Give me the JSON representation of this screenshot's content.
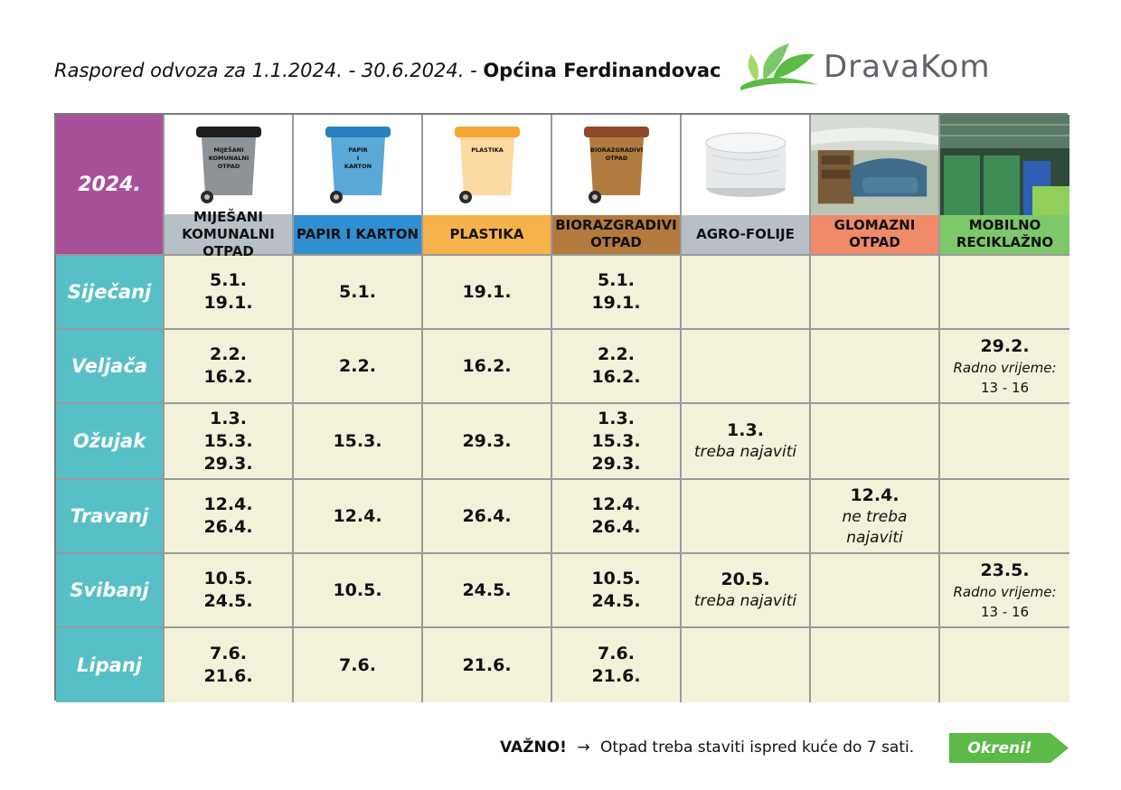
{
  "header": {
    "range_text": "Raspored odvoza za 1.1.2024. - 30.6.2024. - ",
    "municipality": "Općina Ferdinandovac",
    "logo_text": "DravaKom"
  },
  "table": {
    "year": "2024.",
    "columns": [
      {
        "bin_text": "MIJEŠANI KOMUNALNI OTPAD",
        "label": "MIJEŠANI KOMUNALNI OTPAD",
        "color": "#b7c0c6",
        "bin_color": "#8e9398",
        "lid_color": "#1e1e1e"
      },
      {
        "bin_text": "PAPIR I KARTON",
        "label": "PAPIR I KARTON",
        "color": "#2f8fd1",
        "bin_color": "#5aa9d8",
        "lid_color": "#2a7fbd"
      },
      {
        "bin_text": "PLASTIKA",
        "label": "PLASTIKA",
        "color": "#f7b24a",
        "bin_color": "#fdd9a4",
        "lid_color": "#f7a531"
      },
      {
        "bin_text": "BIORAZGRADIVI OTPAD",
        "label": "BIORAZGRADIVI OTPAD",
        "color": "#b37a3e",
        "bin_color": "#b07b3f",
        "lid_color": "#8c4a2a"
      },
      {
        "label": "AGRO-FOLIJE",
        "color": "#b7c0c6"
      },
      {
        "label": "GLOMAZNI OTPAD",
        "color": "#f08a6a"
      },
      {
        "label": "MOBILNO RECIKLAŽNO",
        "color": "#7cc86a"
      }
    ],
    "rows": [
      {
        "month": "Siječanj",
        "cells": [
          {
            "dates": [
              "5.1.",
              "19.1."
            ]
          },
          {
            "dates": [
              "5.1."
            ]
          },
          {
            "dates": [
              "19.1."
            ]
          },
          {
            "dates": [
              "5.1.",
              "19.1."
            ]
          },
          {},
          {},
          {}
        ]
      },
      {
        "month": "Veljača",
        "cells": [
          {
            "dates": [
              "2.2.",
              "16.2."
            ]
          },
          {
            "dates": [
              "2.2."
            ]
          },
          {
            "dates": [
              "16.2."
            ]
          },
          {
            "dates": [
              "2.2.",
              "16.2."
            ]
          },
          {},
          {},
          {
            "dates": [
              "29.2."
            ],
            "note": "Radno vrijeme:",
            "hours": "13 - 16"
          }
        ]
      },
      {
        "month": "Ožujak",
        "cells": [
          {
            "dates": [
              "1.3.",
              "15.3.",
              "29.3."
            ]
          },
          {
            "dates": [
              "15.3."
            ]
          },
          {
            "dates": [
              "29.3."
            ]
          },
          {
            "dates": [
              "1.3.",
              "15.3.",
              "29.3."
            ]
          },
          {
            "dates": [
              "1.3."
            ],
            "note": "treba najaviti"
          },
          {},
          {}
        ]
      },
      {
        "month": "Travanj",
        "cells": [
          {
            "dates": [
              "12.4.",
              "26.4."
            ]
          },
          {
            "dates": [
              "12.4."
            ]
          },
          {
            "dates": [
              "26.4."
            ]
          },
          {
            "dates": [
              "12.4.",
              "26.4."
            ]
          },
          {},
          {
            "dates": [
              "12.4."
            ],
            "note": "ne treba najaviti"
          },
          {}
        ]
      },
      {
        "month": "Svibanj",
        "cells": [
          {
            "dates": [
              "10.5.",
              "24.5."
            ]
          },
          {
            "dates": [
              "10.5."
            ]
          },
          {
            "dates": [
              "24.5."
            ]
          },
          {
            "dates": [
              "10.5.",
              "24.5."
            ]
          },
          {
            "dates": [
              "20.5."
            ],
            "note": "treba najaviti"
          },
          {},
          {
            "dates": [
              "23.5."
            ],
            "note": "Radno vrijeme:",
            "hours": "13 - 16"
          }
        ]
      },
      {
        "month": "Lipanj",
        "cells": [
          {
            "dates": [
              "7.6.",
              "21.6."
            ]
          },
          {
            "dates": [
              "7.6."
            ]
          },
          {
            "dates": [
              "21.6."
            ]
          },
          {
            "dates": [
              "7.6.",
              "21.6."
            ]
          },
          {},
          {},
          {}
        ]
      }
    ]
  },
  "footer": {
    "important": "VAŽNO!",
    "arrow": "→",
    "message": "Otpad treba staviti ispred kuće do 7 sati.",
    "turn_label": "Okreni!",
    "turn_color": "#5cba47"
  }
}
